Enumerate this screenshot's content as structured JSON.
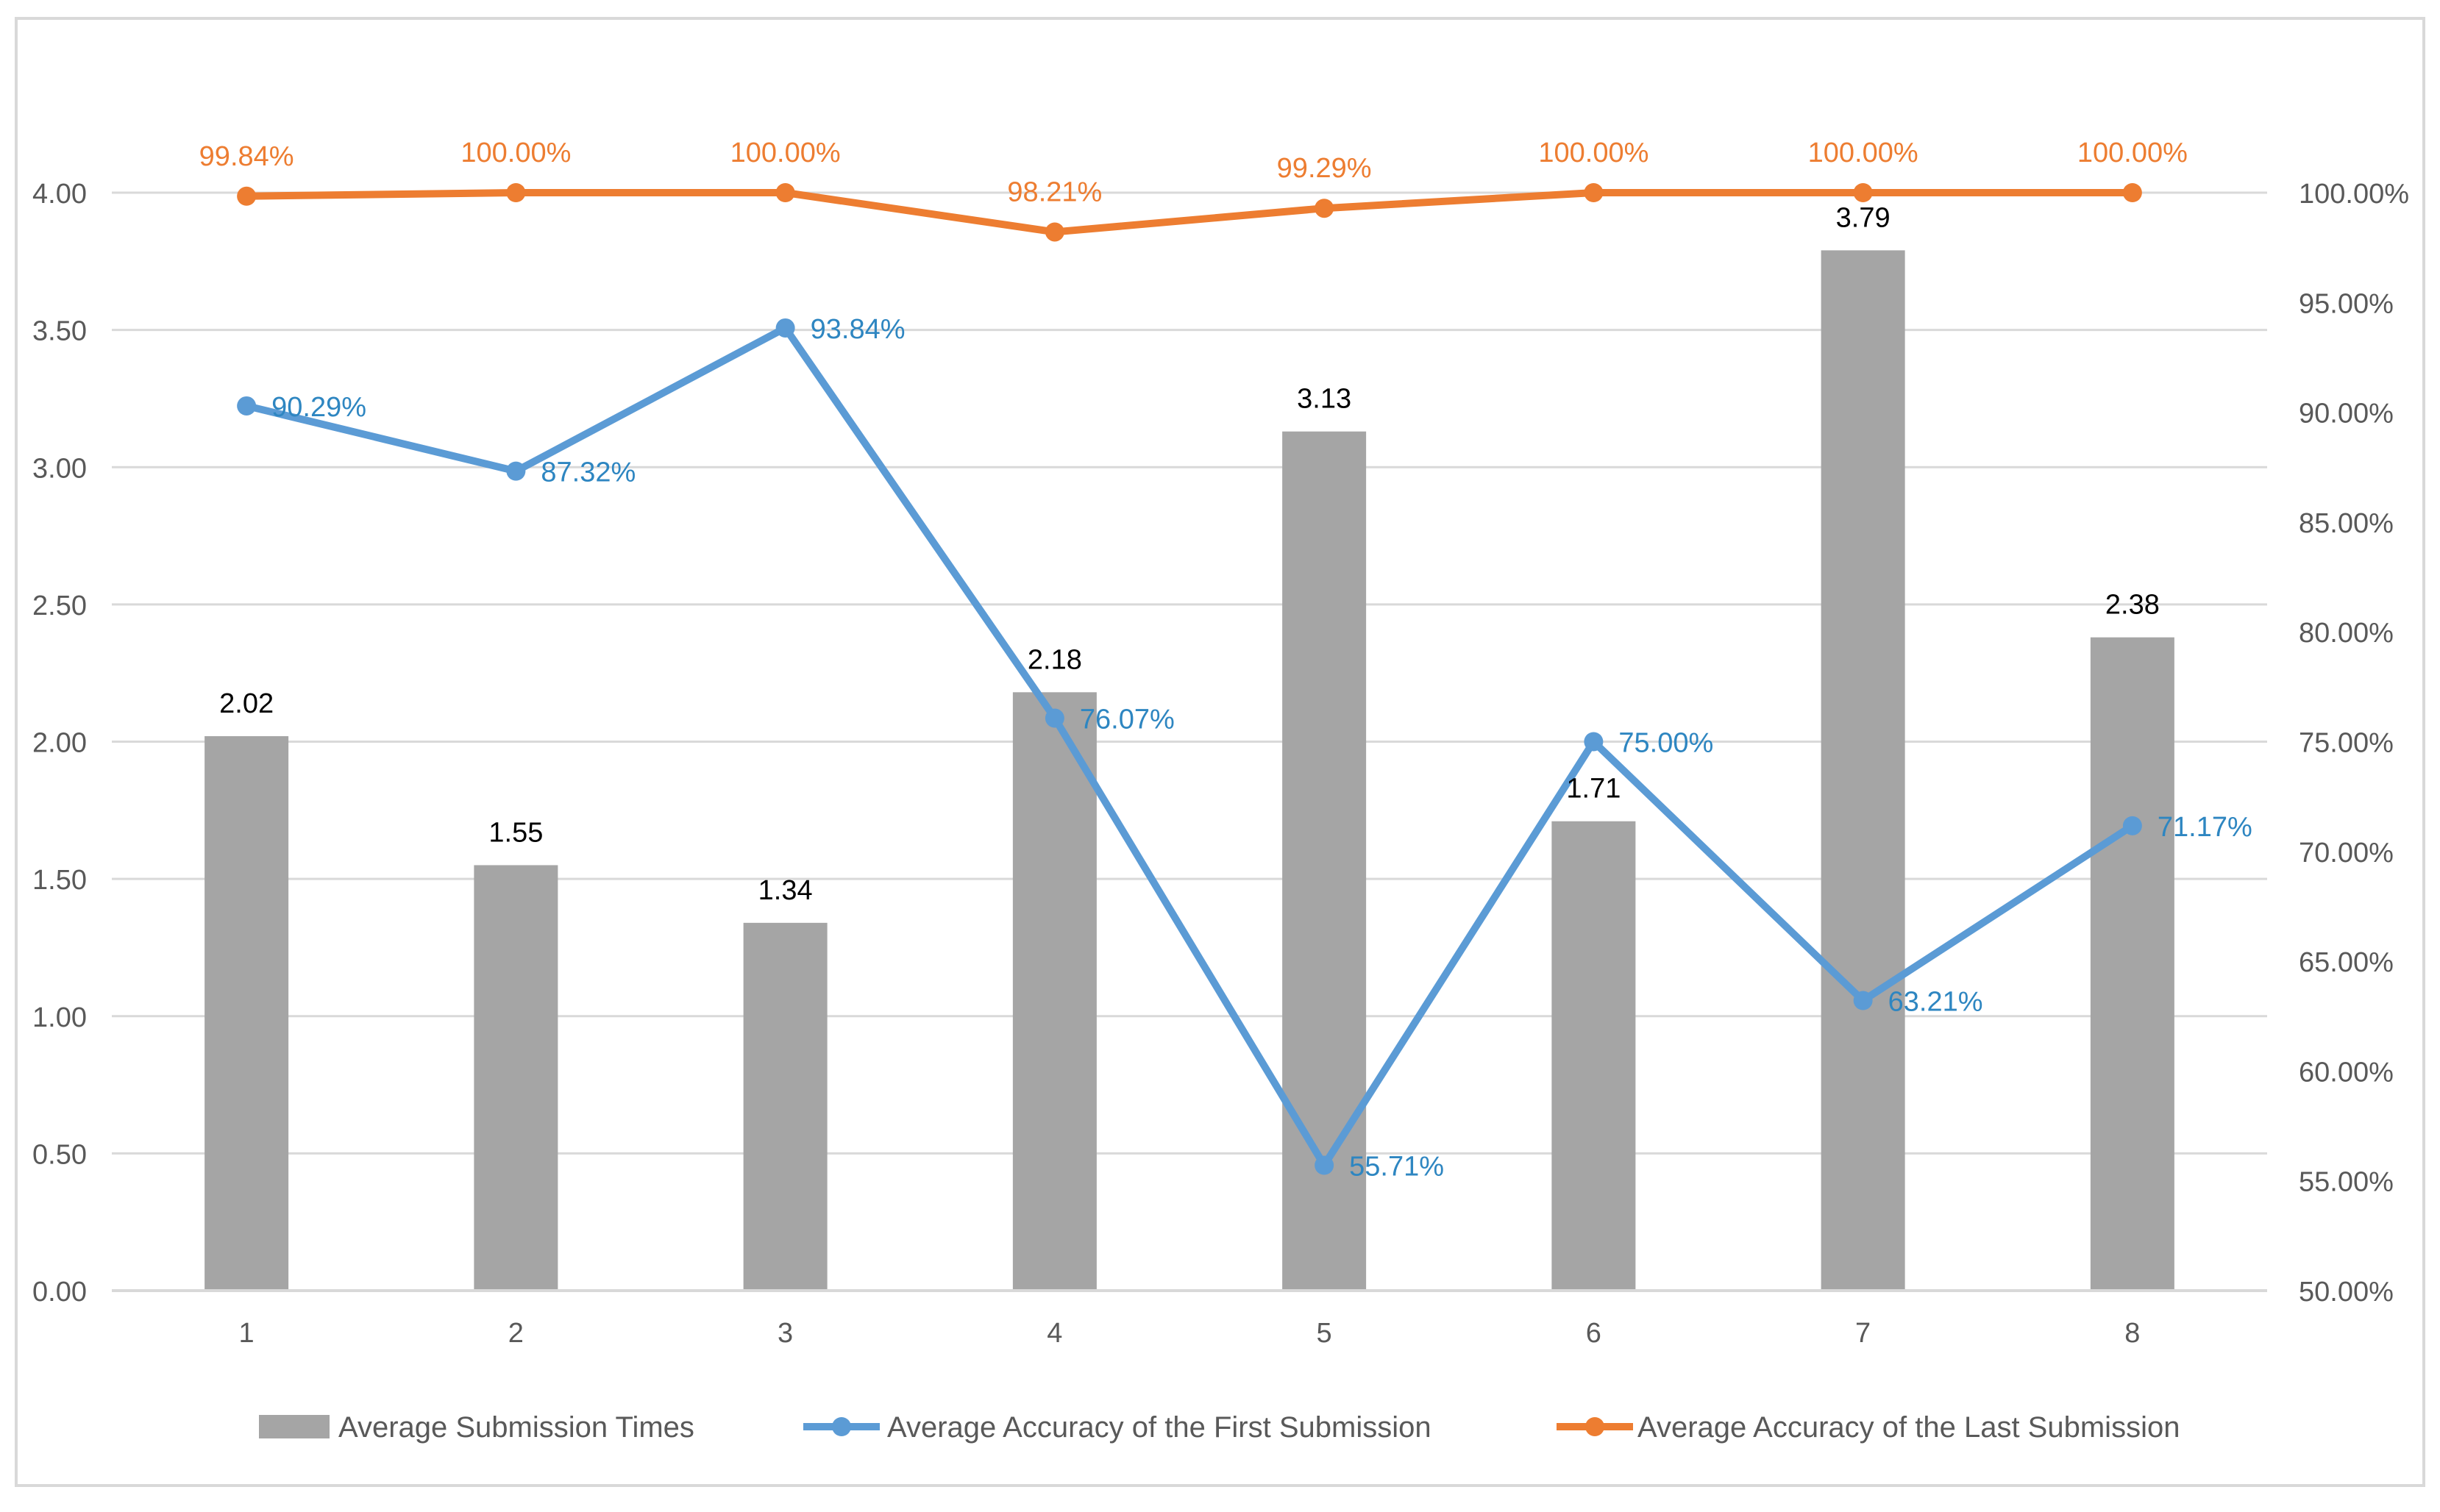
{
  "chart_data": {
    "type": "bar+line",
    "title": "",
    "categories": [
      "1",
      "2",
      "3",
      "4",
      "5",
      "6",
      "7",
      "8"
    ],
    "series": [
      {
        "name": "Average Submission Times",
        "type": "bar",
        "axis": "left",
        "color": "#a5a5a5",
        "values": [
          2.02,
          1.55,
          1.34,
          2.18,
          3.13,
          1.71,
          3.79,
          2.38
        ],
        "labels": [
          "2.02",
          "1.55",
          "1.34",
          "2.18",
          "3.13",
          "1.71",
          "3.79",
          "2.38"
        ],
        "label_color": "#000000"
      },
      {
        "name": "Average Accuracy of the First Submission",
        "type": "line",
        "axis": "right",
        "color": "#5b9bd5",
        "values": [
          90.29,
          87.32,
          93.84,
          76.07,
          55.71,
          75.0,
          63.21,
          71.17
        ],
        "labels": [
          "90.29%",
          "87.32%",
          "93.84%",
          "76.07%",
          "55.71%",
          "75.00%",
          "63.21%",
          "71.17%"
        ],
        "label_color": "#2e86c1"
      },
      {
        "name": "Average Accuracy of the Last Submission",
        "type": "line",
        "axis": "right",
        "color": "#ed7d31",
        "values": [
          99.84,
          100.0,
          100.0,
          98.21,
          99.29,
          100.0,
          100.0,
          100.0
        ],
        "labels": [
          "99.84%",
          "100.00%",
          "100.00%",
          "98.21%",
          "99.29%",
          "100.00%",
          "100.00%",
          "100.00%"
        ],
        "label_color": "#ed7d31"
      }
    ],
    "y_left": {
      "min": 0,
      "max": 4,
      "ticks": [
        0,
        0.5,
        1,
        1.5,
        2,
        2.5,
        3,
        3.5,
        4
      ],
      "tick_labels": [
        "0.00",
        "0.50",
        "1.00",
        "1.50",
        "2.00",
        "2.50",
        "3.00",
        "3.50",
        "4.00"
      ]
    },
    "y_right": {
      "min": 50,
      "max": 100,
      "ticks": [
        50,
        55,
        60,
        65,
        70,
        75,
        80,
        85,
        90,
        95,
        100
      ],
      "tick_labels": [
        "50.00%",
        "55.00%",
        "60.00%",
        "65.00%",
        "70.00%",
        "75.00%",
        "80.00%",
        "85.00%",
        "90.00%",
        "95.00%",
        "100.00%"
      ]
    },
    "grid": true,
    "legend_position": "bottom",
    "axis_label_color": "#595959",
    "grid_color": "#d9d9d9",
    "border_color": "#d9d9d9"
  }
}
